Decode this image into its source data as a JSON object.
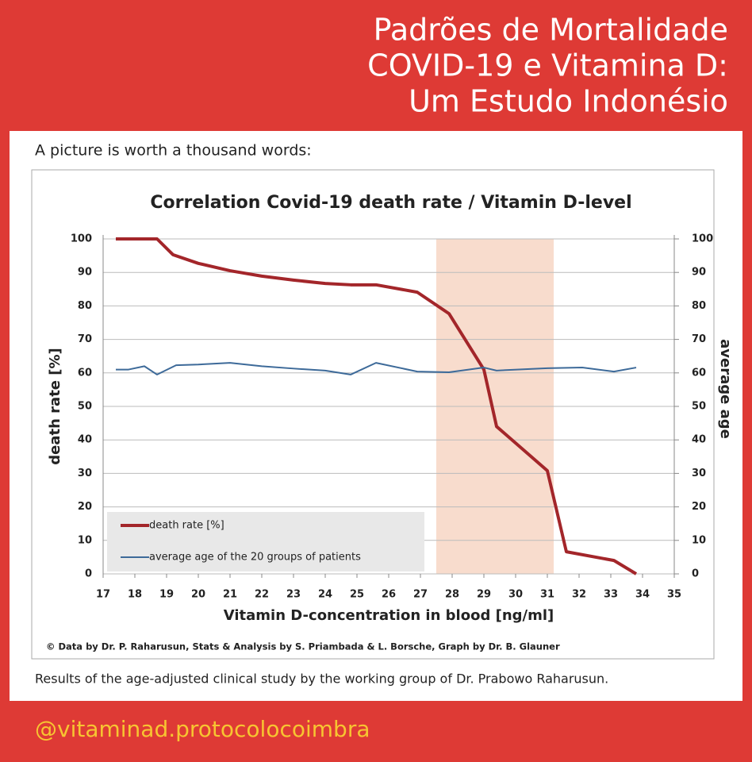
{
  "header": {
    "title": [
      "Padrões de Mortalidade",
      "COVID-19 e Vitamina D:",
      "Um Estudo Indonésio"
    ]
  },
  "intro": "A picture is worth a thousand words:",
  "caption": "Results of the age-adjusted clinical study by the working group of Dr. Prabowo Raharusun.",
  "footer": "@vitaminad.protocolocoimbra",
  "chart_data": {
    "type": "line",
    "title": "Correlation Covid-19 death rate / Vitamin D-level",
    "xlabel": "Vitamin D-concentration in blood [ng/ml]",
    "ylabel": "death rate [%]",
    "y2label": "average age",
    "source": "© Data by Dr. P. Raharusun, Stats & Analysis by S. Priambada & L. Borsche, Graph by Dr. B. Glauner",
    "xlim": [
      17,
      35
    ],
    "xticks": [
      17,
      18,
      19,
      20,
      21,
      22,
      23,
      24,
      25,
      26,
      27,
      28,
      29,
      30,
      31,
      32,
      33,
      34,
      35
    ],
    "ylim": [
      0,
      100
    ],
    "yticks": [
      0,
      10,
      20,
      30,
      40,
      50,
      60,
      70,
      80,
      90,
      100
    ],
    "y2lim": [
      0,
      100
    ],
    "y2ticks": [
      0,
      10,
      20,
      30,
      40,
      50,
      60,
      70,
      80,
      90,
      100
    ],
    "highlight": [
      27.5,
      31.2
    ],
    "grid": true,
    "series": [
      {
        "name": "death rate [%]",
        "color": "#a3262a",
        "x": [
          17.4,
          18.7,
          19.2,
          20,
          21,
          22,
          23,
          24,
          24.8,
          25.6,
          26.9,
          27.9,
          29,
          29.4,
          31,
          31.6,
          33.1,
          33.8
        ],
        "values": [
          100,
          100,
          95.3,
          92.7,
          90.5,
          88.9,
          87.7,
          86.7,
          86.3,
          86.3,
          84.1,
          77.7,
          61,
          44,
          30.8,
          6.6,
          4,
          0
        ]
      },
      {
        "name": "average age of the 20 groups of patients",
        "color": "#3d6a99",
        "axis": "y2",
        "x": [
          17.4,
          17.8,
          18.3,
          18.7,
          19.3,
          20,
          21,
          22,
          23,
          24,
          24.8,
          25.6,
          26.9,
          27.9,
          29,
          29.4,
          31,
          32.1,
          33.1,
          33.8
        ],
        "values": [
          61,
          61,
          62,
          59.5,
          62.3,
          62.5,
          63,
          62,
          61.3,
          60.7,
          59.5,
          63,
          60.4,
          60.2,
          61.6,
          60.7,
          61.4,
          61.6,
          60.4,
          61.6
        ]
      }
    ]
  }
}
